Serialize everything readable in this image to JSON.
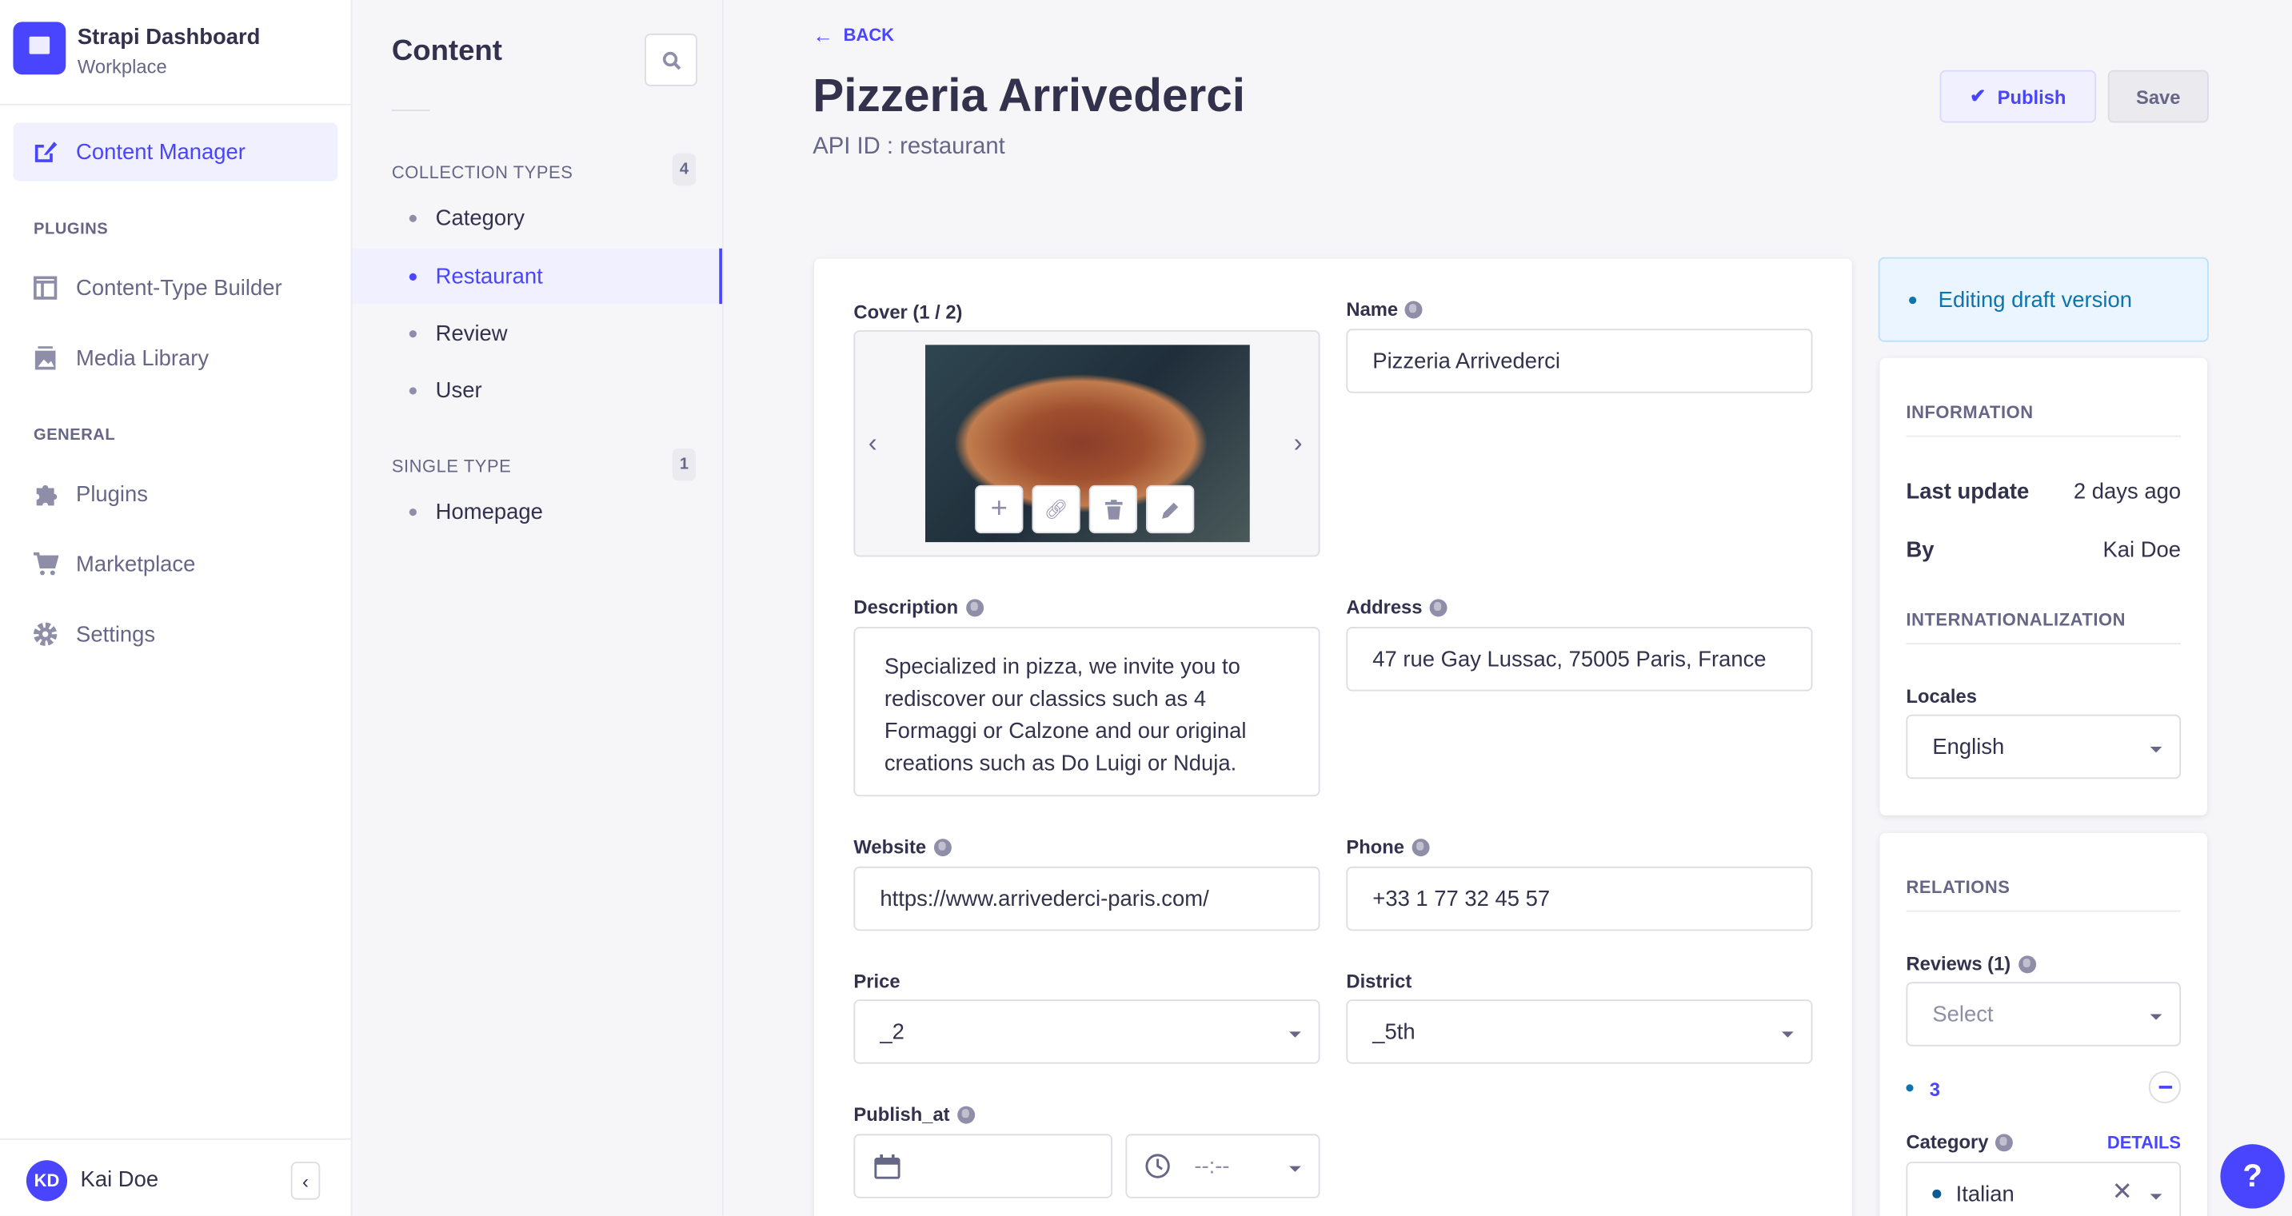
{
  "app": {
    "title": "Strapi Dashboard",
    "subtitle": "Workplace"
  },
  "nav": {
    "content_manager": "Content Manager",
    "plugins_section": "PLUGINS",
    "ctb": "Content-Type Builder",
    "media": "Media Library",
    "general_section": "GENERAL",
    "plugins": "Plugins",
    "marketplace": "Marketplace",
    "settings": "Settings",
    "user_initials": "KD",
    "user_name": "Kai Doe"
  },
  "sub": {
    "title": "Content",
    "collection_label": "COLLECTION TYPES",
    "collection_count": "4",
    "collection_items": [
      "Category",
      "Restaurant",
      "Review",
      "User"
    ],
    "single_label": "SINGLE TYPE",
    "single_count": "1",
    "single_items": [
      "Homepage"
    ]
  },
  "header": {
    "back": "BACK",
    "title": "Pizzeria Arrivederci",
    "api_id": "API ID : restaurant",
    "publish": "Publish",
    "save": "Save"
  },
  "form": {
    "cover_label": "Cover (1 / 2)",
    "name_label": "Name",
    "name_value": "Pizzeria Arrivederci",
    "description_label": "Description",
    "description_value": "Specialized in pizza, we invite you to rediscover our classics such as 4 Formaggi or Calzone and our original creations such as Do Luigi or Nduja.",
    "address_label": "Address",
    "address_value": "47 rue Gay Lussac, 75005 Paris, France",
    "website_label": "Website",
    "website_value": "https://www.arrivederci-paris.com/",
    "phone_label": "Phone",
    "phone_value": "+33 1 77 32 45 57",
    "price_label": "Price",
    "price_value": "_2",
    "district_label": "District",
    "district_value": "_5th",
    "publish_at_label": "Publish_at",
    "time_placeholder": "--:--"
  },
  "side": {
    "draft": "Editing draft version",
    "info_header": "INFORMATION",
    "last_update_label": "Last update",
    "last_update_value": "2 days ago",
    "by_label": "By",
    "by_value": "Kai Doe",
    "i18n_header": "INTERNATIONALIZATION",
    "locales_label": "Locales",
    "locale_value": "English",
    "relations_header": "RELATIONS",
    "reviews_label": "Reviews (1)",
    "reviews_placeholder": "Select",
    "review_item": "3",
    "category_label": "Category",
    "details": "DETAILS",
    "category_value": "Italian"
  },
  "colors": {
    "primary": "#4945ff",
    "draft_bg": "#eaf5ff",
    "draft_text": "#0c75af"
  }
}
